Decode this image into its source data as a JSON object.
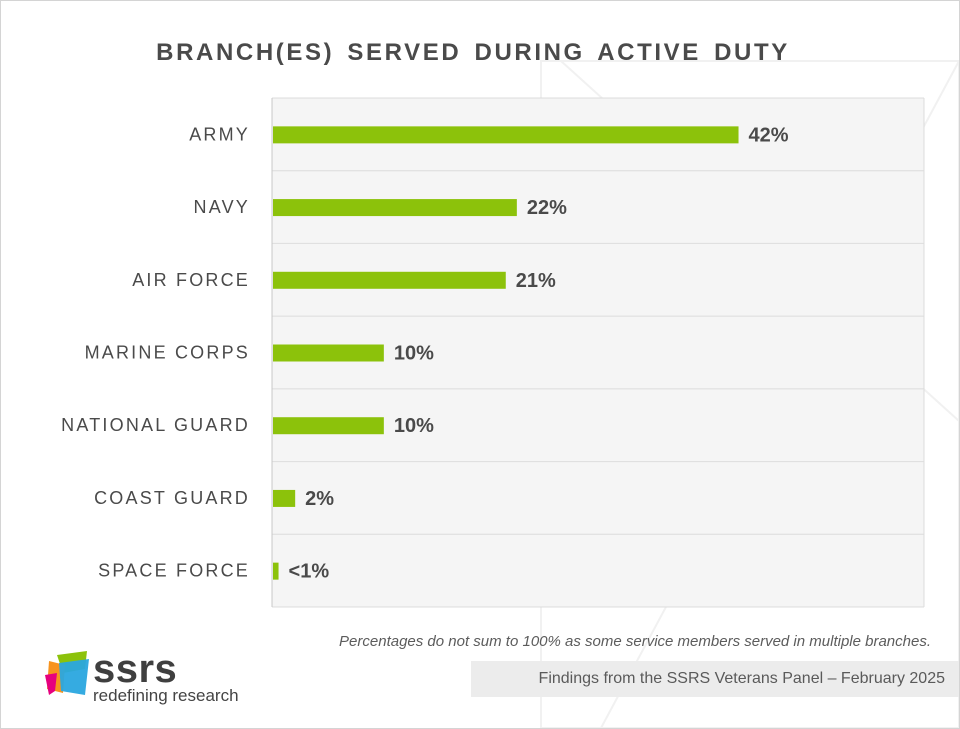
{
  "colors": {
    "bar": "#8cc20b",
    "plot_bg": "#f5f5f5",
    "grid": "#dcdcdc",
    "text": "#4a4a4a"
  },
  "chart_data": {
    "type": "bar",
    "orientation": "horizontal",
    "title": "BRANCH(ES) SERVED DURING ACTIVE DUTY",
    "categories": [
      "ARMY",
      "NAVY",
      "AIR FORCE",
      "MARINE CORPS",
      "NATIONAL GUARD",
      "COAST GUARD",
      "SPACE FORCE"
    ],
    "values": [
      42,
      22,
      21,
      10,
      10,
      2,
      0.5
    ],
    "value_labels": [
      "42%",
      "22%",
      "21%",
      "10%",
      "10%",
      "2%",
      "<1%"
    ],
    "xlim": [
      0,
      50
    ],
    "unit": "%",
    "grid": true
  },
  "note": "Percentages do not sum to 100% as some service members served in multiple branches.",
  "footer": "Findings from the SSRS Veterans Panel – February 2025",
  "logo": {
    "wordmark": "ssrs",
    "tagline": "redefining research"
  }
}
